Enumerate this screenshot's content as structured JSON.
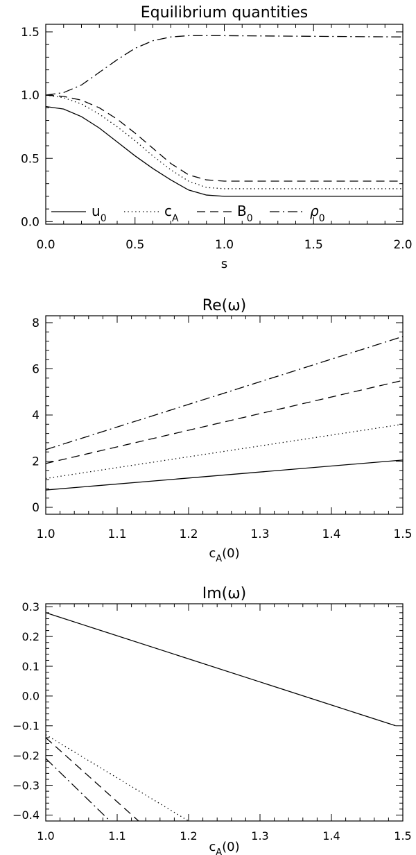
{
  "chart_data": [
    {
      "type": "line",
      "title": "Equilibrium quantities",
      "xlabel": "s",
      "ylabel": "",
      "xlim": [
        0,
        2
      ],
      "ylim": [
        -0.02,
        1.56
      ],
      "xticks": [
        0.0,
        0.5,
        1.0,
        1.5,
        2.0
      ],
      "xtick_labels": [
        "0.0",
        "0.5",
        "1.0",
        "1.5",
        "2.0"
      ],
      "yticks": [
        0.0,
        0.5,
        1.0,
        1.5
      ],
      "ytick_labels": [
        "0.0",
        "0.5",
        "1.0",
        "1.5"
      ],
      "grid": false,
      "legend": "bottom",
      "legend_items": [
        {
          "main": "u",
          "sub": "0",
          "style": "solid"
        },
        {
          "main": "c",
          "sub": "A",
          "style": "dotted"
        },
        {
          "main": "B",
          "sub": "0",
          "style": "dashed"
        },
        {
          "main": "ρ",
          "sub": "0",
          "style": "dashdot"
        }
      ],
      "series": [
        {
          "style": "solid",
          "x": [
            0,
            0.1,
            0.2,
            0.3,
            0.4,
            0.5,
            0.6,
            0.7,
            0.8,
            0.9,
            1.0,
            2.0
          ],
          "y": [
            0.91,
            0.89,
            0.83,
            0.74,
            0.63,
            0.52,
            0.42,
            0.33,
            0.25,
            0.21,
            0.2,
            0.2
          ]
        },
        {
          "style": "dotted",
          "x": [
            0,
            0.1,
            0.2,
            0.3,
            0.4,
            0.5,
            0.6,
            0.7,
            0.8,
            0.9,
            1.0,
            2.0
          ],
          "y": [
            1.0,
            0.98,
            0.93,
            0.85,
            0.75,
            0.64,
            0.52,
            0.41,
            0.32,
            0.27,
            0.26,
            0.26
          ]
        },
        {
          "style": "dashed",
          "x": [
            0,
            0.1,
            0.2,
            0.3,
            0.4,
            0.5,
            0.6,
            0.7,
            0.8,
            0.9,
            1.0,
            2.0
          ],
          "y": [
            1.0,
            0.99,
            0.96,
            0.9,
            0.81,
            0.7,
            0.58,
            0.46,
            0.37,
            0.33,
            0.32,
            0.32
          ]
        },
        {
          "style": "dashdot",
          "x": [
            0,
            0.1,
            0.2,
            0.3,
            0.4,
            0.5,
            0.6,
            0.7,
            0.8,
            0.9,
            1.0,
            2.0
          ],
          "y": [
            1.0,
            1.02,
            1.08,
            1.18,
            1.28,
            1.37,
            1.43,
            1.46,
            1.47,
            1.47,
            1.47,
            1.46
          ]
        }
      ]
    },
    {
      "type": "line",
      "title": "Re(ω)",
      "xlabel": "c_A(0)",
      "ylabel": "",
      "xlim": [
        1.0,
        1.5
      ],
      "ylim": [
        -0.3,
        8.3
      ],
      "xticks": [
        1.0,
        1.1,
        1.2,
        1.3,
        1.4,
        1.5
      ],
      "xtick_labels": [
        "1.0",
        "1.1",
        "1.2",
        "1.3",
        "1.4",
        "1.5"
      ],
      "yticks": [
        0,
        2,
        4,
        6,
        8
      ],
      "ytick_labels": [
        "0",
        "2",
        "4",
        "6",
        "8"
      ],
      "grid": false,
      "series": [
        {
          "style": "solid",
          "x": [
            1.0,
            1.5
          ],
          "y": [
            0.75,
            2.05
          ]
        },
        {
          "style": "dotted",
          "x": [
            1.0,
            1.5
          ],
          "y": [
            1.25,
            3.6
          ]
        },
        {
          "style": "dashed",
          "x": [
            1.0,
            1.5
          ],
          "y": [
            1.9,
            5.5
          ]
        },
        {
          "style": "dashdot",
          "x": [
            1.0,
            1.5
          ],
          "y": [
            2.5,
            7.4
          ]
        }
      ]
    },
    {
      "type": "line",
      "title": "Im(ω)",
      "xlabel": "c_A(0)",
      "ylabel": "",
      "xlim": [
        1.0,
        1.5
      ],
      "ylim": [
        -0.42,
        0.31
      ],
      "xticks": [
        1.0,
        1.1,
        1.2,
        1.3,
        1.4,
        1.5
      ],
      "xtick_labels": [
        "1.0",
        "1.1",
        "1.2",
        "1.3",
        "1.4",
        "1.5"
      ],
      "yticks": [
        0.3,
        0.2,
        0.1,
        0.0,
        -0.1,
        -0.2,
        -0.3,
        -0.4
      ],
      "ytick_labels": [
        "0.3",
        "0.2",
        "0.1",
        "0.0",
        "−0.1",
        "−0.2",
        "−0.3",
        "−0.4"
      ],
      "grid": false,
      "series": [
        {
          "style": "solid",
          "x": [
            1.0,
            1.49
          ],
          "y": [
            0.28,
            -0.1
          ]
        },
        {
          "style": "dotted",
          "x": [
            1.0,
            1.2
          ],
          "y": [
            -0.13,
            -0.42
          ]
        },
        {
          "style": "dashed",
          "x": [
            1.0,
            1.13
          ],
          "y": [
            -0.14,
            -0.42
          ]
        },
        {
          "style": "dashdot",
          "x": [
            1.0,
            1.09
          ],
          "y": [
            -0.21,
            -0.42
          ]
        }
      ]
    }
  ]
}
